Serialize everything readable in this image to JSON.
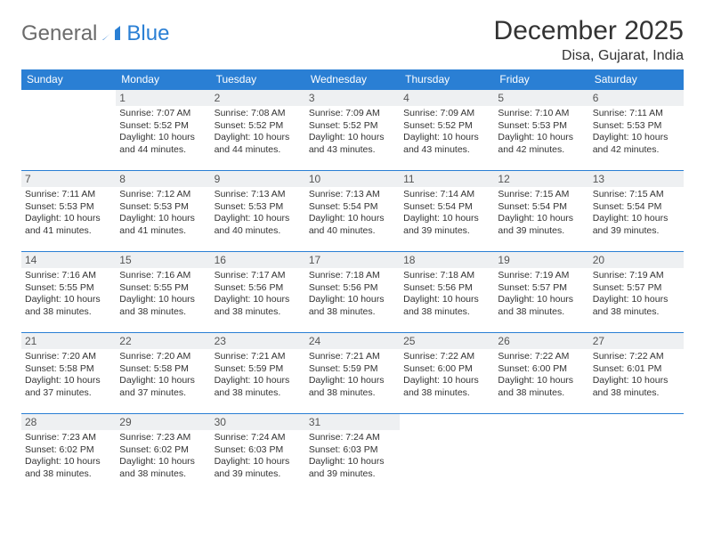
{
  "logo": {
    "part1": "General",
    "part2": "Blue"
  },
  "title": "December 2025",
  "location": "Disa, Gujarat, India",
  "weekdays": [
    "Sunday",
    "Monday",
    "Tuesday",
    "Wednesday",
    "Thursday",
    "Friday",
    "Saturday"
  ],
  "colors": {
    "accent": "#2a7fd4",
    "headerText": "#ffffff",
    "daybar": "#eef0f2",
    "text": "#333333",
    "logoGray": "#6b6b6b"
  },
  "weeks": [
    [
      {
        "num": "",
        "sunrise": "",
        "sunset": "",
        "daylight": ""
      },
      {
        "num": "1",
        "sunrise": "Sunrise: 7:07 AM",
        "sunset": "Sunset: 5:52 PM",
        "daylight": "Daylight: 10 hours and 44 minutes."
      },
      {
        "num": "2",
        "sunrise": "Sunrise: 7:08 AM",
        "sunset": "Sunset: 5:52 PM",
        "daylight": "Daylight: 10 hours and 44 minutes."
      },
      {
        "num": "3",
        "sunrise": "Sunrise: 7:09 AM",
        "sunset": "Sunset: 5:52 PM",
        "daylight": "Daylight: 10 hours and 43 minutes."
      },
      {
        "num": "4",
        "sunrise": "Sunrise: 7:09 AM",
        "sunset": "Sunset: 5:52 PM",
        "daylight": "Daylight: 10 hours and 43 minutes."
      },
      {
        "num": "5",
        "sunrise": "Sunrise: 7:10 AM",
        "sunset": "Sunset: 5:53 PM",
        "daylight": "Daylight: 10 hours and 42 minutes."
      },
      {
        "num": "6",
        "sunrise": "Sunrise: 7:11 AM",
        "sunset": "Sunset: 5:53 PM",
        "daylight": "Daylight: 10 hours and 42 minutes."
      }
    ],
    [
      {
        "num": "7",
        "sunrise": "Sunrise: 7:11 AM",
        "sunset": "Sunset: 5:53 PM",
        "daylight": "Daylight: 10 hours and 41 minutes."
      },
      {
        "num": "8",
        "sunrise": "Sunrise: 7:12 AM",
        "sunset": "Sunset: 5:53 PM",
        "daylight": "Daylight: 10 hours and 41 minutes."
      },
      {
        "num": "9",
        "sunrise": "Sunrise: 7:13 AM",
        "sunset": "Sunset: 5:53 PM",
        "daylight": "Daylight: 10 hours and 40 minutes."
      },
      {
        "num": "10",
        "sunrise": "Sunrise: 7:13 AM",
        "sunset": "Sunset: 5:54 PM",
        "daylight": "Daylight: 10 hours and 40 minutes."
      },
      {
        "num": "11",
        "sunrise": "Sunrise: 7:14 AM",
        "sunset": "Sunset: 5:54 PM",
        "daylight": "Daylight: 10 hours and 39 minutes."
      },
      {
        "num": "12",
        "sunrise": "Sunrise: 7:15 AM",
        "sunset": "Sunset: 5:54 PM",
        "daylight": "Daylight: 10 hours and 39 minutes."
      },
      {
        "num": "13",
        "sunrise": "Sunrise: 7:15 AM",
        "sunset": "Sunset: 5:54 PM",
        "daylight": "Daylight: 10 hours and 39 minutes."
      }
    ],
    [
      {
        "num": "14",
        "sunrise": "Sunrise: 7:16 AM",
        "sunset": "Sunset: 5:55 PM",
        "daylight": "Daylight: 10 hours and 38 minutes."
      },
      {
        "num": "15",
        "sunrise": "Sunrise: 7:16 AM",
        "sunset": "Sunset: 5:55 PM",
        "daylight": "Daylight: 10 hours and 38 minutes."
      },
      {
        "num": "16",
        "sunrise": "Sunrise: 7:17 AM",
        "sunset": "Sunset: 5:56 PM",
        "daylight": "Daylight: 10 hours and 38 minutes."
      },
      {
        "num": "17",
        "sunrise": "Sunrise: 7:18 AM",
        "sunset": "Sunset: 5:56 PM",
        "daylight": "Daylight: 10 hours and 38 minutes."
      },
      {
        "num": "18",
        "sunrise": "Sunrise: 7:18 AM",
        "sunset": "Sunset: 5:56 PM",
        "daylight": "Daylight: 10 hours and 38 minutes."
      },
      {
        "num": "19",
        "sunrise": "Sunrise: 7:19 AM",
        "sunset": "Sunset: 5:57 PM",
        "daylight": "Daylight: 10 hours and 38 minutes."
      },
      {
        "num": "20",
        "sunrise": "Sunrise: 7:19 AM",
        "sunset": "Sunset: 5:57 PM",
        "daylight": "Daylight: 10 hours and 38 minutes."
      }
    ],
    [
      {
        "num": "21",
        "sunrise": "Sunrise: 7:20 AM",
        "sunset": "Sunset: 5:58 PM",
        "daylight": "Daylight: 10 hours and 37 minutes."
      },
      {
        "num": "22",
        "sunrise": "Sunrise: 7:20 AM",
        "sunset": "Sunset: 5:58 PM",
        "daylight": "Daylight: 10 hours and 37 minutes."
      },
      {
        "num": "23",
        "sunrise": "Sunrise: 7:21 AM",
        "sunset": "Sunset: 5:59 PM",
        "daylight": "Daylight: 10 hours and 38 minutes."
      },
      {
        "num": "24",
        "sunrise": "Sunrise: 7:21 AM",
        "sunset": "Sunset: 5:59 PM",
        "daylight": "Daylight: 10 hours and 38 minutes."
      },
      {
        "num": "25",
        "sunrise": "Sunrise: 7:22 AM",
        "sunset": "Sunset: 6:00 PM",
        "daylight": "Daylight: 10 hours and 38 minutes."
      },
      {
        "num": "26",
        "sunrise": "Sunrise: 7:22 AM",
        "sunset": "Sunset: 6:00 PM",
        "daylight": "Daylight: 10 hours and 38 minutes."
      },
      {
        "num": "27",
        "sunrise": "Sunrise: 7:22 AM",
        "sunset": "Sunset: 6:01 PM",
        "daylight": "Daylight: 10 hours and 38 minutes."
      }
    ],
    [
      {
        "num": "28",
        "sunrise": "Sunrise: 7:23 AM",
        "sunset": "Sunset: 6:02 PM",
        "daylight": "Daylight: 10 hours and 38 minutes."
      },
      {
        "num": "29",
        "sunrise": "Sunrise: 7:23 AM",
        "sunset": "Sunset: 6:02 PM",
        "daylight": "Daylight: 10 hours and 38 minutes."
      },
      {
        "num": "30",
        "sunrise": "Sunrise: 7:24 AM",
        "sunset": "Sunset: 6:03 PM",
        "daylight": "Daylight: 10 hours and 39 minutes."
      },
      {
        "num": "31",
        "sunrise": "Sunrise: 7:24 AM",
        "sunset": "Sunset: 6:03 PM",
        "daylight": "Daylight: 10 hours and 39 minutes."
      },
      {
        "num": "",
        "sunrise": "",
        "sunset": "",
        "daylight": ""
      },
      {
        "num": "",
        "sunrise": "",
        "sunset": "",
        "daylight": ""
      },
      {
        "num": "",
        "sunrise": "",
        "sunset": "",
        "daylight": ""
      }
    ]
  ]
}
